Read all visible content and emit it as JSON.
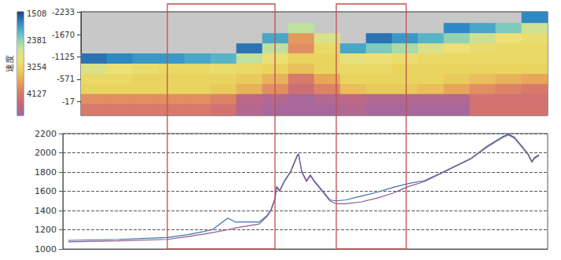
{
  "chart_data": [
    {
      "type": "heatmap",
      "xlim": [
        103,
        697
      ],
      "ylim": [
        -2233,
        320
      ],
      "yticks": [
        -2233,
        -1670,
        -1125,
        -571,
        -17
      ],
      "tick_labels": "y",
      "colorbar": {
        "label": "速度",
        "range": [
          1457,
          4820
        ],
        "ticks": [
          1508,
          2381,
          3254,
          4127
        ]
      },
      "x_edges": [
        103,
        136,
        169,
        202,
        235,
        268,
        301,
        334,
        367,
        400,
        433,
        466,
        499,
        532,
        565,
        598,
        631,
        664,
        697
      ],
      "depth_edges": [
        -2233,
        -1950,
        -1700,
        -1450,
        -1200,
        -950,
        -700,
        -450,
        -200,
        50,
        320
      ],
      "values": [
        [
          null,
          null,
          null,
          null,
          null,
          null,
          null,
          null,
          null,
          null,
          null,
          null,
          null,
          null,
          null,
          null,
          null,
          1800
        ],
        [
          null,
          null,
          null,
          null,
          null,
          null,
          null,
          null,
          2600,
          null,
          null,
          null,
          null,
          null,
          1800,
          2000,
          2300,
          2700
        ],
        [
          null,
          null,
          null,
          null,
          null,
          null,
          null,
          2000,
          3800,
          2800,
          null,
          1700,
          1900,
          2100,
          2400,
          2700,
          3000,
          3100
        ],
        [
          null,
          null,
          null,
          null,
          null,
          null,
          1700,
          2600,
          3900,
          3200,
          2000,
          2300,
          2500,
          2800,
          3000,
          3100,
          3200,
          3200
        ],
        [
          1700,
          1800,
          1900,
          1900,
          2000,
          2100,
          2600,
          3000,
          3300,
          3300,
          2900,
          3000,
          3100,
          3200,
          3200,
          3200,
          3200,
          3200
        ],
        [
          2800,
          3000,
          3100,
          3200,
          3200,
          3100,
          3200,
          3300,
          3500,
          3300,
          3200,
          3200,
          3300,
          3300,
          3300,
          3300,
          3300,
          3300
        ],
        [
          3200,
          3200,
          3300,
          3300,
          3300,
          3300,
          3400,
          3600,
          4100,
          3700,
          3300,
          3300,
          3300,
          3300,
          3400,
          3500,
          3600,
          3700
        ],
        [
          3300,
          3300,
          3300,
          3300,
          3300,
          3400,
          3600,
          3900,
          4300,
          4000,
          3500,
          3400,
          3400,
          3500,
          3700,
          3900,
          4000,
          4100
        ],
        [
          3900,
          3900,
          3900,
          3900,
          3900,
          4000,
          4500,
          4600,
          4700,
          4600,
          4500,
          4600,
          4600,
          4600,
          4600,
          4200,
          4200,
          4200
        ],
        [
          4100,
          4100,
          4100,
          4100,
          4100,
          4200,
          4600,
          4700,
          4700,
          4700,
          4600,
          4700,
          4700,
          4700,
          4700,
          4200,
          4200,
          4200
        ]
      ]
    },
    {
      "type": "line",
      "xlim": [
        80,
        697
      ],
      "ylim": [
        1000,
        2200
      ],
      "yticks": [
        1000,
        1200,
        1400,
        1600,
        1800,
        2000,
        2200
      ],
      "grid": true,
      "tick_labels": "y",
      "highlight_x": [
        [
          213,
          350
        ],
        [
          428,
          517
        ]
      ],
      "x": [
        87,
        150,
        213,
        240,
        270,
        290,
        300,
        330,
        340,
        345,
        350,
        352,
        356,
        362,
        370,
        378,
        380,
        384,
        390,
        395,
        400,
        406,
        412,
        420,
        428,
        440,
        460,
        480,
        500,
        520,
        540,
        560,
        580,
        600,
        620,
        640,
        647,
        655,
        665,
        672,
        677,
        680,
        686
      ],
      "series": [
        {
          "color": "#3a6fb0",
          "values": [
            1090,
            1100,
            1120,
            1150,
            1200,
            1320,
            1280,
            1280,
            1350,
            1410,
            1530,
            1650,
            1610,
            1710,
            1810,
            1970,
            1990,
            1810,
            1710,
            1770,
            1710,
            1650,
            1590,
            1510,
            1500,
            1510,
            1550,
            1590,
            1640,
            1680,
            1710,
            1785,
            1865,
            1945,
            2070,
            2170,
            2195,
            2160,
            2060,
            1990,
            1910,
            1950,
            1980
          ]
        },
        {
          "color": "#8c5a8c",
          "values": [
            1075,
            1085,
            1100,
            1130,
            1170,
            1200,
            1220,
            1260,
            1340,
            1400,
            1520,
            1640,
            1600,
            1700,
            1800,
            1960,
            1985,
            1800,
            1700,
            1760,
            1700,
            1640,
            1580,
            1500,
            1470,
            1470,
            1490,
            1530,
            1580,
            1650,
            1700,
            1780,
            1860,
            1940,
            2060,
            2160,
            2185,
            2150,
            2050,
            1980,
            1900,
            1940,
            1970
          ]
        }
      ]
    }
  ]
}
